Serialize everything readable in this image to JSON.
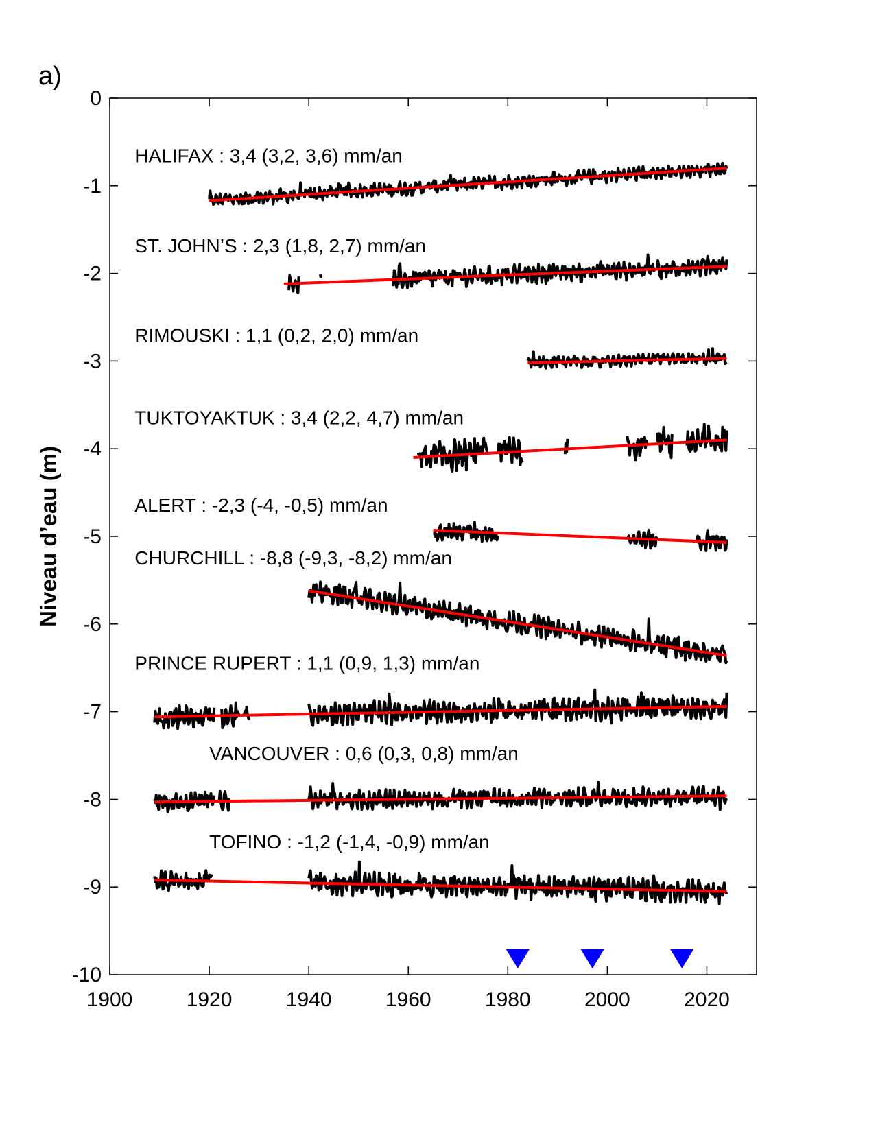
{
  "panel_label": "a)",
  "chart_data": {
    "type": "line",
    "ylabel": "Niveau d’eau (m)",
    "xlabel": "",
    "xlim": [
      1900,
      2030
    ],
    "ylim": [
      -10,
      0
    ],
    "xticks": [
      1900,
      1920,
      1940,
      1960,
      1980,
      2000,
      2020
    ],
    "yticks": [
      0,
      -1,
      -2,
      -3,
      -4,
      -5,
      -6,
      -7,
      -8,
      -9,
      -10
    ],
    "grid": false,
    "colors": {
      "series": "#000000",
      "trend": "#ff0000",
      "marker": "#0000ff"
    },
    "series": [
      {
        "name": "HALIFAX",
        "label": "HALIFAX : 3,4 (3,2, 3,6) mm/an",
        "label_at": [
          1905,
          -0.73
        ],
        "segments": [
          [
            1920,
            2024
          ]
        ],
        "trend": {
          "x": [
            1920,
            2024
          ],
          "y": [
            -1.17,
            -0.8
          ]
        },
        "amp": 0.06
      },
      {
        "name": "ST. JOHN'S",
        "label": "ST. JOHN’S : 2,3 (1,8, 2,7) mm/an",
        "label_at": [
          1905,
          -1.76
        ],
        "segments": [
          [
            1936,
            1938
          ],
          [
            1942.3,
            1942.6
          ],
          [
            1957,
            2024
          ]
        ],
        "trend": {
          "x": [
            1935,
            2024
          ],
          "y": [
            -2.12,
            -1.92
          ]
        },
        "amp": 0.08
      },
      {
        "name": "RIMOUSKI",
        "label": "RIMOUSKI : 1,1 (0,2, 2,0) mm/an",
        "label_at": [
          1905,
          -2.78
        ],
        "segments": [
          [
            1984,
            2024
          ]
        ],
        "trend": {
          "x": [
            1984,
            2024
          ],
          "y": [
            -3.02,
            -2.97
          ]
        },
        "amp": 0.05
      },
      {
        "name": "TUKTOYAKTUK",
        "label": "TUKTOYAKTUK : 3,4 (2,2, 4,7) mm/an",
        "label_at": [
          1905,
          -3.72
        ],
        "segments": [
          [
            1962,
            1976
          ],
          [
            1978,
            1983
          ],
          [
            1991.5,
            1992
          ],
          [
            2004,
            2008
          ],
          [
            2010,
            2013
          ],
          [
            2016,
            2024
          ]
        ],
        "trend": {
          "x": [
            1961,
            2024
          ],
          "y": [
            -4.1,
            -3.9
          ]
        },
        "amp": 0.13
      },
      {
        "name": "ALERT",
        "label": "ALERT : -2,3 (-4, -0,5) mm/an",
        "label_at": [
          1905,
          -4.72
        ],
        "segments": [
          [
            1965,
            1978
          ],
          [
            2004,
            2010
          ],
          [
            2018,
            2024
          ]
        ],
        "trend": {
          "x": [
            1965,
            2024
          ],
          "y": [
            -4.93,
            -5.07
          ]
        },
        "amp": 0.08
      },
      {
        "name": "CHURCHILL",
        "label": "CHURCHILL : -8,8 (-9,3, -8,2) mm/an",
        "label_at": [
          1905,
          -5.32
        ],
        "segments": [
          [
            1940,
            2024
          ]
        ],
        "trend": {
          "x": [
            1940,
            2024
          ],
          "y": [
            -5.62,
            -6.36
          ]
        },
        "amp": 0.09
      },
      {
        "name": "PRINCE RUPERT",
        "label": "PRINCE RUPERT : 1,1 (0,9, 1,3) mm/an",
        "label_at": [
          1905,
          -6.52
        ],
        "segments": [
          [
            1909,
            1921
          ],
          [
            1922.5,
            1926
          ],
          [
            1927,
            1928
          ],
          [
            1940,
            2024
          ]
        ],
        "trend": {
          "x": [
            1909,
            2024
          ],
          "y": [
            -7.06,
            -6.94
          ]
        },
        "amp": 0.1
      },
      {
        "name": "VANCOUVER",
        "label": "VANCOUVER : 0,6 (0,3, 0,8) mm/an",
        "label_at": [
          1920,
          -7.55
        ],
        "segments": [
          [
            1909,
            1921
          ],
          [
            1922,
            1924
          ],
          [
            1940,
            2024
          ]
        ],
        "trend": {
          "x": [
            1909,
            2024
          ],
          "y": [
            -8.03,
            -7.96
          ]
        },
        "amp": 0.08
      },
      {
        "name": "TOFINO",
        "label": "TOFINO : -1,2 (-1,4, -0,9) mm/an",
        "label_at": [
          1920,
          -8.56
        ],
        "segments": [
          [
            1909,
            1920.5
          ],
          [
            1940,
            2024
          ]
        ],
        "trend": {
          "x": [
            1909,
            2024
          ],
          "y": [
            -8.92,
            -9.05
          ]
        },
        "amp": 0.1
      }
    ],
    "markers": {
      "x": [
        1982,
        1997,
        2015
      ],
      "y": -9.82
    }
  }
}
